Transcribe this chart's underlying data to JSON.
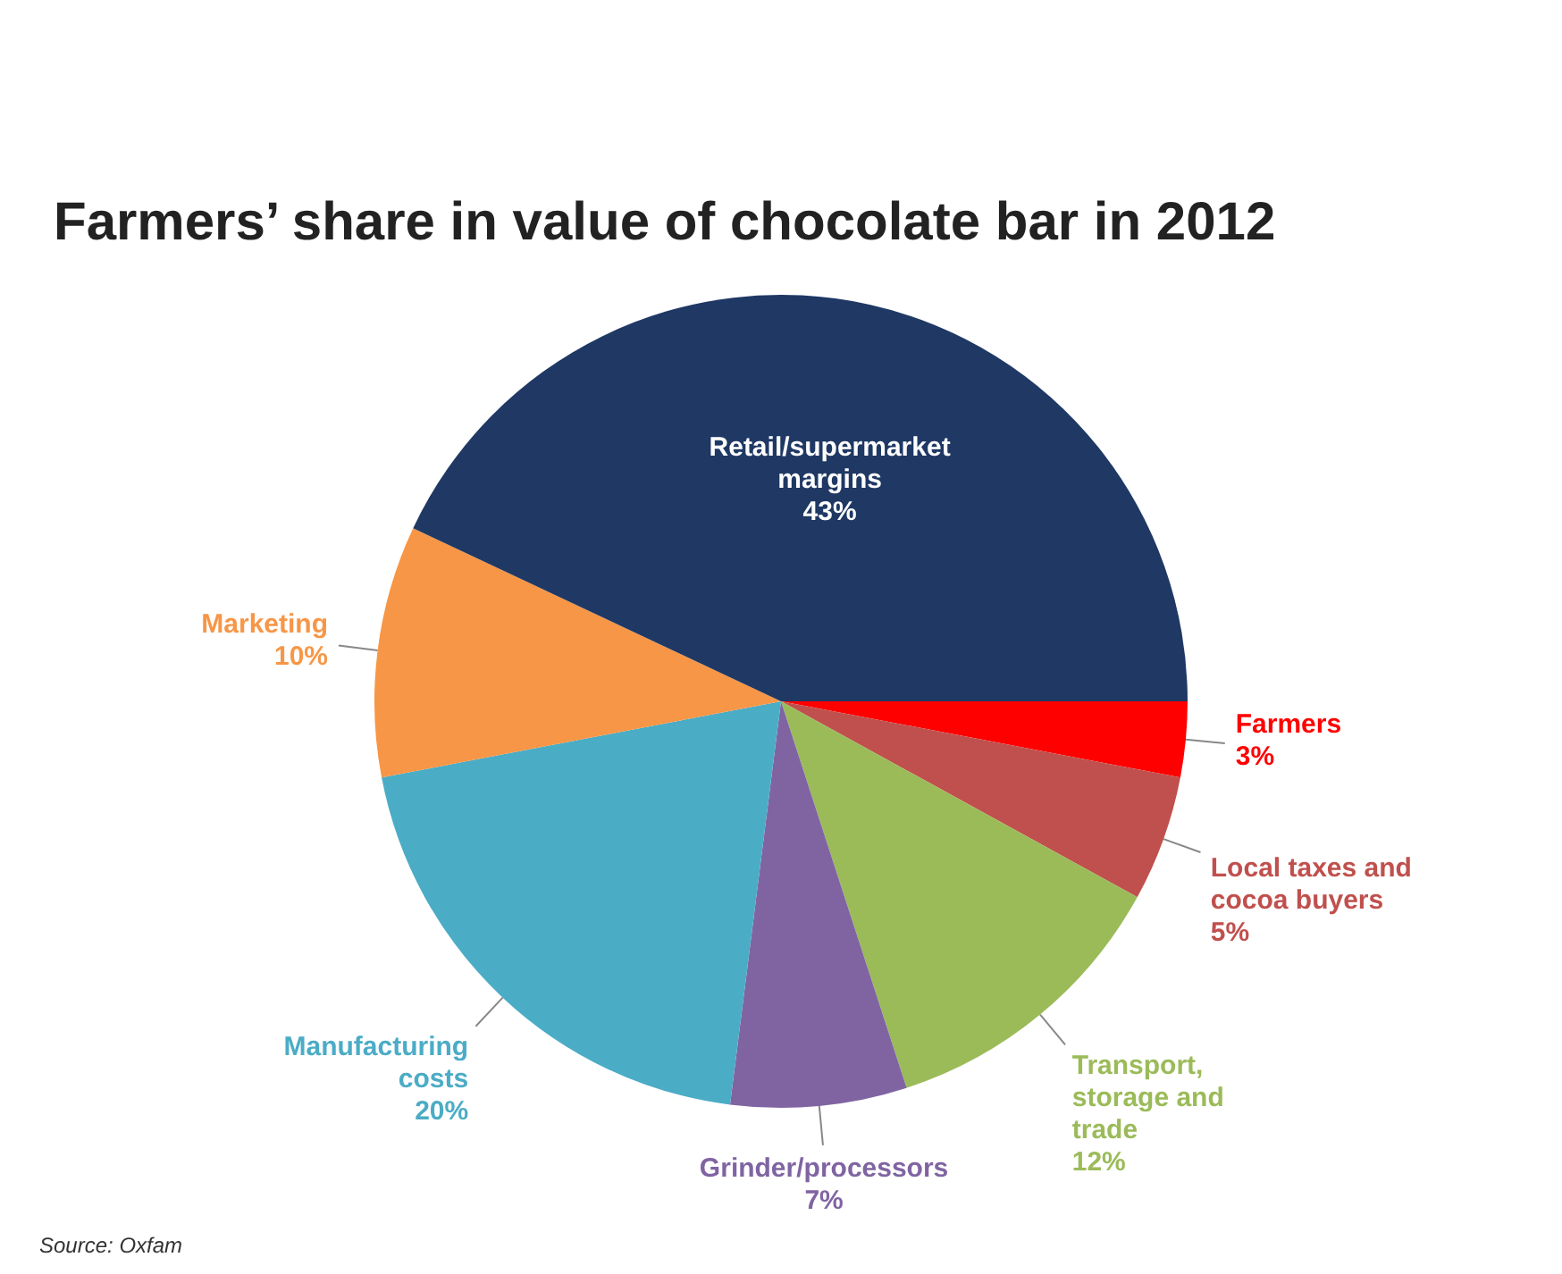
{
  "chart_data": {
    "type": "pie",
    "title": "Farmers’ share in value of chocolate bar in 2012",
    "categories": [
      "Farmers",
      "Local taxes and cocoa buyers",
      "Transport, storage and trade",
      "Grinder/processors",
      "Manufacturing costs",
      "Marketing",
      "Retail/supermarket margins"
    ],
    "values": [
      3,
      5,
      12,
      7,
      20,
      10,
      43
    ],
    "value_labels": [
      "3%",
      "5%",
      "12%",
      "7%",
      "20%",
      "10%",
      "43%"
    ],
    "colors": [
      "#ff0000",
      "#c0504d",
      "#9bbb59",
      "#8064a2",
      "#4bacc6",
      "#f79646",
      "#1f3864"
    ],
    "legend": false,
    "annotations": [
      "Source: Oxfam"
    ]
  }
}
